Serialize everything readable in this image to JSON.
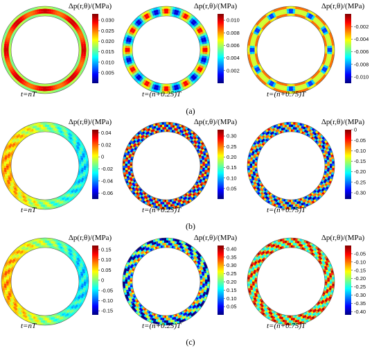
{
  "figure": {
    "colormap": [
      "#00007f",
      "#0000ff",
      "#0080ff",
      "#00ffff",
      "#80ff80",
      "#ffff00",
      "#ff8000",
      "#ff0000",
      "#7f0000"
    ],
    "cb_title": "Δp(r,θ)/(MPa)",
    "rows": [
      {
        "label": "(a)",
        "panels": [
          {
            "time": "t=nT",
            "ticks": [
              "0.030",
              "0.025",
              "0.020",
              "0.015",
              "0.010",
              "0.005"
            ],
            "range": [
              0,
              0.033
            ],
            "pattern": "smooth-hot",
            "lobes": 8
          },
          {
            "time": "t=(n+0.25)T",
            "ticks": [
              "0.010",
              "0.008",
              "0.006",
              "0.004",
              "0.002"
            ],
            "range": [
              0,
              0.011
            ],
            "pattern": "smooth-lobes",
            "lobes": 12
          },
          {
            "time": "t=(n+0.75)T",
            "ticks": [
              "-0.002",
              "-0.004",
              "-0.006",
              "-0.008",
              "-0.010"
            ],
            "range": [
              -0.011,
              0
            ],
            "pattern": "smooth-cold",
            "lobes": 12
          }
        ]
      },
      {
        "label": "(b)",
        "panels": [
          {
            "time": "t=nT",
            "ticks": [
              "0.04",
              "0.02",
              "0",
              "-0.02",
              "-0.04",
              "-0.06"
            ],
            "range": [
              -0.07,
              0.045
            ],
            "pattern": "gradient-left",
            "blades": 20
          },
          {
            "time": "t=(n+0.25)T",
            "ticks": [
              "0.30",
              "0.25",
              "0.20",
              "0.15",
              "0.10",
              "0.05"
            ],
            "range": [
              0,
              0.33
            ],
            "pattern": "blades-hot",
            "blades": 20
          },
          {
            "time": "t=(n+0.75)T",
            "ticks": [
              "0",
              "-0.05",
              "-0.10",
              "-0.15",
              "-0.20",
              "-0.25",
              "-0.30"
            ],
            "range": [
              -0.33,
              0
            ],
            "pattern": "blades-mixed",
            "blades": 20
          }
        ]
      },
      {
        "label": "(c)",
        "panels": [
          {
            "time": "t=nT",
            "ticks": [
              "0.15",
              "0.10",
              "0.05",
              "0",
              "-0.05",
              "-0.10",
              "-0.15"
            ],
            "range": [
              -0.17,
              0.17
            ],
            "pattern": "gradient-left",
            "blades": 20
          },
          {
            "time": "t=(n+0.25)T",
            "ticks": [
              "0.40",
              "0.35",
              "0.30",
              "0.25",
              "0.20",
              "0.15",
              "0.10",
              "0.05"
            ],
            "range": [
              0,
              0.42
            ],
            "pattern": "blades-cool",
            "blades": 20
          },
          {
            "time": "t=(n+0.75)T",
            "ticks": [
              "-0.05",
              "-0.10",
              "-0.15",
              "-0.20",
              "-0.25",
              "-0.30",
              "-0.35",
              "-0.40"
            ],
            "range": [
              -0.42,
              0
            ],
            "pattern": "blades-warm",
            "blades": 20
          }
        ]
      }
    ]
  }
}
